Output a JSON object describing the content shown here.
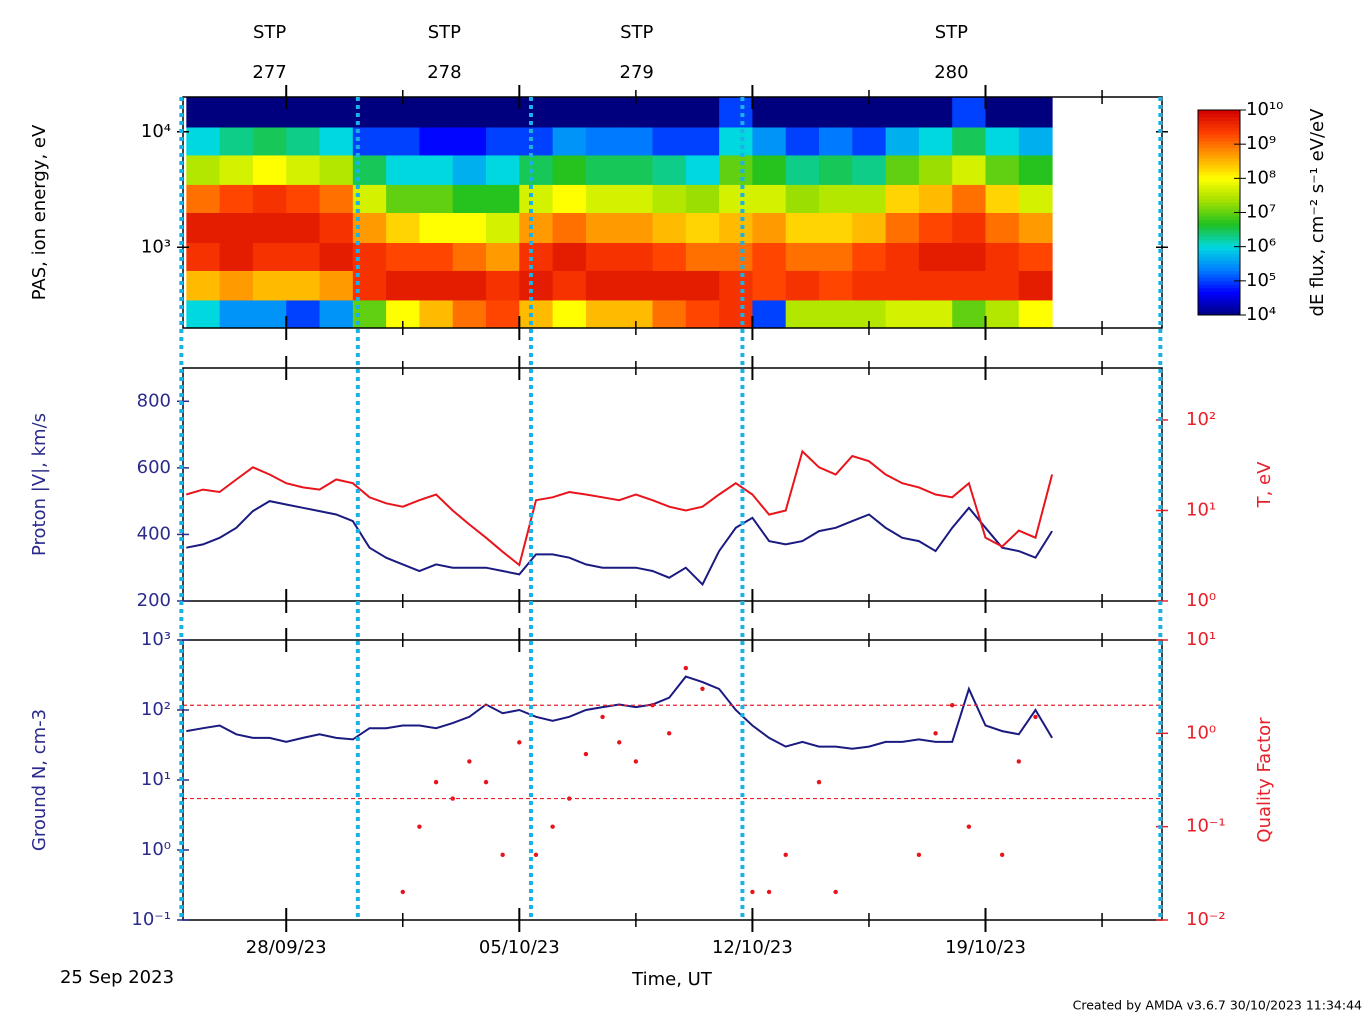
{
  "time_axis": {
    "xlim": [
      -0.1,
      29.3
    ],
    "xticks": [
      {
        "value": 3,
        "label": "28/09/23"
      },
      {
        "value": 10,
        "label": "05/10/23"
      },
      {
        "value": 17,
        "label": "12/10/23"
      },
      {
        "value": 24,
        "label": "19/10/23"
      }
    ],
    "xminorticks": [
      6.5,
      13.5,
      20.5,
      27.5
    ],
    "label": "Time, UT",
    "start_label": "25 Sep 2023"
  },
  "sectors": {
    "prefix": "STP",
    "names": [
      "277",
      "278",
      "279",
      "280"
    ],
    "boundaries": [
      -0.15,
      5.15,
      10.35,
      16.7,
      29.25
    ],
    "color": "#1ab0e8"
  },
  "footer": "Created by AMDA v3.6.7 30/10/2023 11:34:44",
  "chart_data": [
    {
      "type": "heatmap",
      "ylabel": "PAS, ion energy, eV",
      "ycolor": "#000000",
      "log_y": true,
      "ylim": [
        200,
        20000
      ],
      "yticks": [
        {
          "value": 1000,
          "label": "10³"
        },
        {
          "value": 10000,
          "label": "10⁴"
        }
      ],
      "x_edges": [
        0,
        1,
        2,
        3,
        4,
        5,
        6,
        7,
        8,
        9,
        10,
        11,
        12,
        13,
        14,
        15,
        16,
        17,
        18,
        19,
        20,
        21,
        22,
        23,
        24,
        25,
        26
      ],
      "y_edges": [
        200,
        350,
        630,
        1100,
        2000,
        3500,
        6300,
        11000,
        20000
      ],
      "z": [
        [
          1000000.0,
          300000000.0,
          3000000000.0,
          5000000000.0,
          1000000000.0,
          30000000.0,
          1000000.0,
          10000.0
        ],
        [
          300000.0,
          500000000.0,
          5000000000.0,
          5000000000.0,
          2000000000.0,
          50000000.0,
          2000000.0,
          10000.0
        ],
        [
          300000.0,
          300000000.0,
          3000000000.0,
          5000000000.0,
          3000000000.0,
          100000000.0,
          3000000.0,
          10000.0
        ],
        [
          100000.0,
          300000000.0,
          3000000000.0,
          5000000000.0,
          2000000000.0,
          50000000.0,
          2000000.0,
          10000.0
        ],
        [
          300000.0,
          500000000.0,
          5000000000.0,
          3000000000.0,
          1000000000.0,
          30000000.0,
          1000000.0,
          10000.0
        ],
        [
          10000000.0,
          3000000000.0,
          3000000000.0,
          500000000.0,
          50000000.0,
          3000000.0,
          100000.0,
          10000.0
        ],
        [
          100000000.0,
          5000000000.0,
          2000000000.0,
          200000000.0,
          10000000.0,
          1000000.0,
          100000.0,
          10000.0
        ],
        [
          300000000.0,
          5000000000.0,
          2000000000.0,
          100000000.0,
          10000000.0,
          1000000.0,
          50000.0,
          10000.0
        ],
        [
          1000000000.0,
          5000000000.0,
          1000000000.0,
          100000000.0,
          5000000.0,
          500000.0,
          50000.0,
          10000.0
        ],
        [
          2000000000.0,
          3000000000.0,
          500000000.0,
          50000000.0,
          5000000.0,
          1000000.0,
          100000.0,
          10000.0
        ],
        [
          300000000.0,
          5000000000.0,
          3000000000.0,
          500000000.0,
          50000000.0,
          3000000.0,
          100000.0,
          10000.0
        ],
        [
          100000000.0,
          3000000000.0,
          5000000000.0,
          1000000000.0,
          100000000.0,
          5000000.0,
          300000.0,
          10000.0
        ],
        [
          300000000.0,
          5000000000.0,
          3000000000.0,
          500000000.0,
          50000000.0,
          3000000.0,
          200000.0,
          10000.0
        ],
        [
          300000000.0,
          5000000000.0,
          3000000000.0,
          500000000.0,
          50000000.0,
          3000000.0,
          200000.0,
          10000.0
        ],
        [
          1000000000.0,
          5000000000.0,
          2000000000.0,
          300000000.0,
          30000000.0,
          2000000.0,
          100000.0,
          10000.0
        ],
        [
          2000000000.0,
          5000000000.0,
          1000000000.0,
          200000000.0,
          20000000.0,
          1000000.0,
          100000.0,
          10000.0
        ],
        [
          3000000000.0,
          3000000000.0,
          1000000000.0,
          300000000.0,
          50000000.0,
          10000000.0,
          1000000.0,
          100000.0
        ],
        [
          100000.0,
          2000000000.0,
          2000000000.0,
          500000000.0,
          50000000.0,
          5000000.0,
          300000.0,
          10000.0
        ],
        [
          30000000.0,
          3000000000.0,
          1000000000.0,
          200000000.0,
          20000000.0,
          2000000.0,
          100000.0,
          10000.0
        ],
        [
          30000000.0,
          2000000000.0,
          1000000000.0,
          200000000.0,
          30000000.0,
          3000000.0,
          200000.0,
          10000.0
        ],
        [
          30000000.0,
          3000000000.0,
          2000000000.0,
          300000000.0,
          30000000.0,
          2000000.0,
          100000.0,
          10000.0
        ],
        [
          50000000.0,
          3000000000.0,
          3000000000.0,
          1000000000.0,
          200000000.0,
          10000000.0,
          500000.0,
          10000.0
        ],
        [
          50000000.0,
          3000000000.0,
          5000000000.0,
          2000000000.0,
          300000000.0,
          20000000.0,
          1000000.0,
          10000.0
        ],
        [
          10000000.0,
          3000000000.0,
          5000000000.0,
          3000000000.0,
          1000000000.0,
          50000000.0,
          3000000.0,
          100000.0
        ],
        [
          30000000.0,
          3000000000.0,
          3000000000.0,
          1000000000.0,
          200000000.0,
          10000000.0,
          1000000.0,
          10000.0
        ],
        [
          100000000.0,
          5000000000.0,
          2000000000.0,
          500000000.0,
          50000000.0,
          5000000.0,
          500000.0,
          10000.0
        ]
      ],
      "zlim": [
        10000.0,
        10000000000.0
      ],
      "zticks": [
        {
          "value": 10000.0,
          "label": "10⁴"
        },
        {
          "value": 100000.0,
          "label": "10⁵"
        },
        {
          "value": 1000000.0,
          "label": "10⁶"
        },
        {
          "value": 10000000.0,
          "label": "10⁷"
        },
        {
          "value": 100000000.0,
          "label": "10⁸"
        },
        {
          "value": 1000000000.0,
          "label": "10⁹"
        },
        {
          "value": 10000000000.0,
          "label": "10¹⁰"
        }
      ],
      "zlabel": "dE flux, cm⁻² s⁻¹ eV/eV",
      "colormap": [
        "#00007f",
        "#0000ff",
        "#0080ff",
        "#00d8e0",
        "#20c020",
        "#a0e000",
        "#ffff00",
        "#ffa000",
        "#ff4000",
        "#d00000"
      ]
    },
    {
      "type": "line",
      "ylabel": "Proton |V|, km/s",
      "ycolor": "#2b2b8c",
      "log_y": false,
      "ylim": [
        200,
        900
      ],
      "yticks": [
        200,
        400,
        600,
        800
      ],
      "y2label": "T, eV",
      "y2color": "#e8202a",
      "log_y2": true,
      "y2lim": [
        1,
        375
      ],
      "y2ticks": [
        {
          "value": 1,
          "label": "10⁰"
        },
        {
          "value": 10,
          "label": "10¹"
        },
        {
          "value": 100,
          "label": "10²"
        }
      ],
      "x": [
        0,
        0.5,
        1,
        1.5,
        2,
        2.5,
        3,
        3.5,
        4,
        4.5,
        5,
        5.5,
        6,
        6.5,
        7,
        7.5,
        8,
        8.5,
        9,
        9.5,
        10,
        10.5,
        11,
        11.5,
        12,
        12.5,
        13,
        13.5,
        14,
        14.5,
        15,
        15.5,
        16,
        16.5,
        17,
        17.5,
        18,
        18.5,
        19,
        19.5,
        20,
        20.5,
        21,
        21.5,
        22,
        22.5,
        23,
        23.5,
        24,
        24.5,
        25,
        25.5,
        26
      ],
      "series": [
        {
          "color": "#1a1a80",
          "values": [
            360,
            370,
            390,
            420,
            470,
            500,
            490,
            480,
            470,
            460,
            440,
            360,
            330,
            310,
            290,
            310,
            300,
            300,
            300,
            290,
            280,
            340,
            340,
            330,
            310,
            300,
            300,
            300,
            290,
            270,
            300,
            250,
            350,
            420,
            450,
            380,
            370,
            380,
            410,
            420,
            440,
            460,
            420,
            390,
            380,
            350,
            420,
            480,
            420,
            360,
            350,
            330,
            410
          ]
        },
        {
          "color": "#e8141c",
          "axis": "y2",
          "values": [
            15,
            17,
            16,
            22,
            30,
            25,
            20,
            18,
            17,
            22,
            20,
            14,
            12,
            11,
            13,
            15,
            10,
            7,
            5,
            3.5,
            2.5,
            13,
            14,
            16,
            15,
            14,
            13,
            15,
            13,
            11,
            10,
            11,
            15,
            20,
            15,
            9,
            10,
            45,
            30,
            25,
            40,
            35,
            25,
            20,
            18,
            15,
            14,
            20,
            5,
            4,
            6,
            5,
            25
          ]
        }
      ]
    },
    {
      "type": "line",
      "ylabel": "Ground N, cm-3",
      "ycolor": "#2b2b8c",
      "log_y": true,
      "ylim": [
        0.1,
        1000
      ],
      "yticks": [
        {
          "value": 0.1,
          "label": "10⁻¹"
        },
        {
          "value": 1,
          "label": "10⁰"
        },
        {
          "value": 10,
          "label": "10¹"
        },
        {
          "value": 100,
          "label": "10²"
        },
        {
          "value": 1000,
          "label": "10³"
        }
      ],
      "y2label": "Quality Factor",
      "y2color": "#e8202a",
      "log_y2": true,
      "y2lim": [
        0.01,
        10
      ],
      "y2ticks": [
        {
          "value": 0.01,
          "label": "10⁻²"
        },
        {
          "value": 0.1,
          "label": "10⁻¹"
        },
        {
          "value": 1,
          "label": "10⁰"
        },
        {
          "value": 10,
          "label": "10¹"
        }
      ],
      "y2_reference_lines": [
        2,
        0.2
      ],
      "x": [
        0,
        0.5,
        1,
        1.5,
        2,
        2.5,
        3,
        3.5,
        4,
        4.5,
        5,
        5.5,
        6,
        6.5,
        7,
        7.5,
        8,
        8.5,
        9,
        9.5,
        10,
        10.5,
        11,
        11.5,
        12,
        12.5,
        13,
        13.5,
        14,
        14.5,
        15,
        15.5,
        16,
        16.5,
        17,
        17.5,
        18,
        18.5,
        19,
        19.5,
        20,
        20.5,
        21,
        21.5,
        22,
        22.5,
        23,
        23.5,
        24,
        24.5,
        25,
        25.5,
        26
      ],
      "series": [
        {
          "color": "#1a1a80",
          "values": [
            50,
            55,
            60,
            45,
            40,
            40,
            35,
            40,
            45,
            40,
            38,
            55,
            55,
            60,
            60,
            55,
            65,
            80,
            120,
            90,
            100,
            80,
            70,
            80,
            100,
            110,
            120,
            110,
            120,
            150,
            300,
            250,
            200,
            100,
            60,
            40,
            30,
            35,
            30,
            30,
            28,
            30,
            35,
            35,
            38,
            35,
            35,
            200,
            60,
            50,
            45,
            100,
            40
          ]
        },
        {
          "color": "#e8141c",
          "axis": "y2",
          "marker": "dots",
          "values": [
            null,
            null,
            null,
            null,
            null,
            null,
            null,
            null,
            null,
            null,
            null,
            null,
            null,
            0.02,
            0.1,
            0.3,
            0.2,
            0.5,
            0.3,
            0.05,
            0.8,
            0.05,
            0.1,
            0.2,
            0.6,
            1.5,
            0.8,
            0.5,
            2,
            1,
            5,
            3,
            null,
            null,
            0.02,
            0.02,
            0.05,
            null,
            0.3,
            0.02,
            null,
            null,
            null,
            null,
            0.05,
            1,
            2,
            0.1,
            null,
            0.05,
            0.5,
            1.5,
            null
          ]
        }
      ]
    }
  ]
}
